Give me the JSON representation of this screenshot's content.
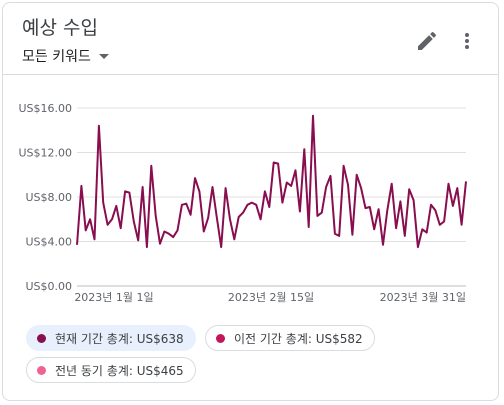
{
  "card": {
    "title": "예상 수입",
    "filter_label": "모든 키워드"
  },
  "icons": {
    "edit": "pencil-icon",
    "more": "more-vert-icon"
  },
  "colors": {
    "series": "#880e4f",
    "grid": "#e0e0e0",
    "axis": "#bdbdbd",
    "prev_dot": "#c2185b",
    "yoy_dot": "#f06292"
  },
  "legend": [
    {
      "label": "현재 기간 총계: US$638",
      "color": "#880e4f",
      "active": true
    },
    {
      "label": "이전 기간 총계: US$582",
      "color": "#c2185b",
      "active": false
    },
    {
      "label": "전년 동기 총계: US$465",
      "color": "#f06292",
      "active": false
    }
  ],
  "chart_data": {
    "type": "line",
    "title": "",
    "xlabel": "",
    "ylabel": "",
    "ylim": [
      0,
      16
    ],
    "y_ticks": [
      "US$0.00",
      "US$4.00",
      "US$8.00",
      "US$12.00",
      "US$16.00"
    ],
    "x_ticks": [
      "2023년 1월 1일",
      "2023년 2월 15일",
      "2023년 3월 31일"
    ],
    "x_range": [
      "2022-12-28",
      "2023-04-01"
    ],
    "grid": true,
    "series": [
      {
        "name": "현재 기간",
        "values": [
          3.7,
          9.0,
          5.0,
          6.0,
          4.2,
          14.4,
          7.5,
          5.5,
          6.0,
          7.2,
          5.2,
          8.5,
          8.4,
          5.8,
          4.1,
          8.9,
          3.5,
          10.8,
          6.3,
          3.8,
          4.9,
          4.7,
          4.4,
          5.0,
          7.3,
          7.4,
          6.4,
          9.7,
          8.5,
          4.9,
          6.1,
          8.9,
          6.1,
          3.5,
          8.8,
          6.0,
          4.2,
          6.2,
          6.6,
          7.3,
          7.5,
          7.3,
          6.0,
          8.5,
          7.1,
          11.1,
          11.0,
          7.5,
          9.3,
          9.0,
          10.4,
          6.7,
          12.3,
          5.3,
          15.3,
          6.3,
          6.6,
          8.9,
          9.9,
          4.7,
          4.5,
          10.8,
          9.1,
          4.6,
          10.0,
          8.8,
          7.0,
          7.1,
          5.1,
          6.9,
          3.7,
          6.8,
          9.2,
          5.2,
          7.6,
          4.5,
          8.7,
          7.7,
          3.5,
          5.1,
          4.8,
          7.3,
          6.8,
          5.5,
          5.8,
          9.2,
          7.2,
          8.8,
          5.5,
          9.4
        ]
      }
    ]
  }
}
